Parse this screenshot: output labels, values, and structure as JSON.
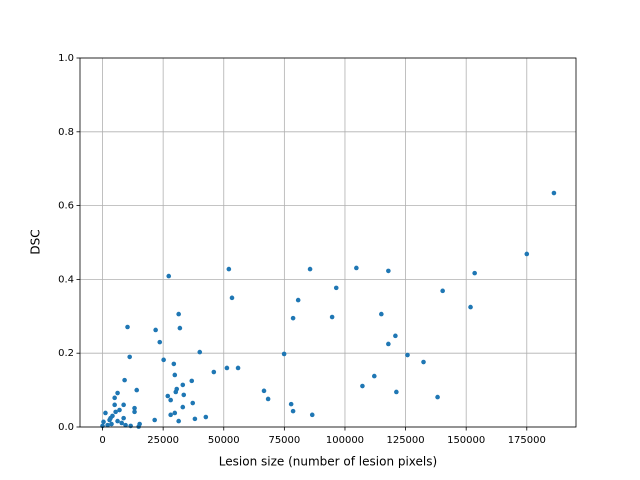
{
  "chart_data": {
    "type": "scatter",
    "xlabel": "Lesion size (number of lesion pixels)",
    "ylabel": "DSC",
    "color": "#1f77b4",
    "grid": true,
    "xlim": [
      -9300,
      195300
    ],
    "ylim": [
      0,
      1
    ],
    "xticks": [
      0,
      25000,
      50000,
      75000,
      100000,
      125000,
      150000,
      175000
    ],
    "yticks": [
      {
        "value": 0,
        "label": "0.0"
      },
      {
        "value": 0.2,
        "label": "0.2"
      },
      {
        "value": 0.4,
        "label": "0.4"
      },
      {
        "value": 0.6,
        "label": "0.6"
      },
      {
        "value": 0.8,
        "label": "0.8"
      },
      {
        "value": 1,
        "label": "1.0"
      }
    ],
    "x": [
      186200,
      175000,
      153500,
      151800,
      140300,
      138200,
      132400,
      125800,
      120800,
      121200,
      117900,
      117900,
      115000,
      112100,
      107200,
      104700,
      96400,
      94700,
      85600,
      86500,
      80700,
      78600,
      78600,
      77800,
      74900,
      68300,
      66600,
      55900,
      53400,
      52100,
      51300,
      45900,
      42600,
      40100,
      38100,
      36800,
      37200,
      33100,
      33500,
      33100,
      31900,
      31400,
      31400,
      30200,
      30600,
      29400,
      29800,
      29800,
      28100,
      28100,
      26900,
      27300,
      25200,
      23600,
      21900,
      21500,
      15300,
      14900,
      14100,
      13200,
      13200,
      11200,
      10300,
      9100,
      8700,
      6200,
      5000,
      7000,
      5400,
      4100,
      2900,
      1200,
      400,
      2100,
      3700,
      6200,
      7900,
      9500,
      11600,
      5000,
      3300,
      0,
      8700
    ],
    "values": [
      0.634,
      0.469,
      0.417,
      0.325,
      0.369,
      0.081,
      0.176,
      0.195,
      0.247,
      0.095,
      0.225,
      0.423,
      0.306,
      0.138,
      0.111,
      0.431,
      0.377,
      0.298,
      0.428,
      0.033,
      0.344,
      0.295,
      0.043,
      0.062,
      0.198,
      0.076,
      0.098,
      0.16,
      0.35,
      0.428,
      0.16,
      0.149,
      0.027,
      0.203,
      0.022,
      0.125,
      0.065,
      0.114,
      0.087,
      0.054,
      0.268,
      0.306,
      0.016,
      0.095,
      0.103,
      0.171,
      0.141,
      0.038,
      0.033,
      0.073,
      0.084,
      0.409,
      0.182,
      0.23,
      0.263,
      0.019,
      0.008,
      0.001,
      0.1,
      0.051,
      0.041,
      0.19,
      0.271,
      0.127,
      0.06,
      0.092,
      0.079,
      0.046,
      0.041,
      0.03,
      0.019,
      0.038,
      0.014,
      0.005,
      0.008,
      0.016,
      0.011,
      0.005,
      0.003,
      0.06,
      0.024,
      0.003,
      0.024
    ]
  }
}
